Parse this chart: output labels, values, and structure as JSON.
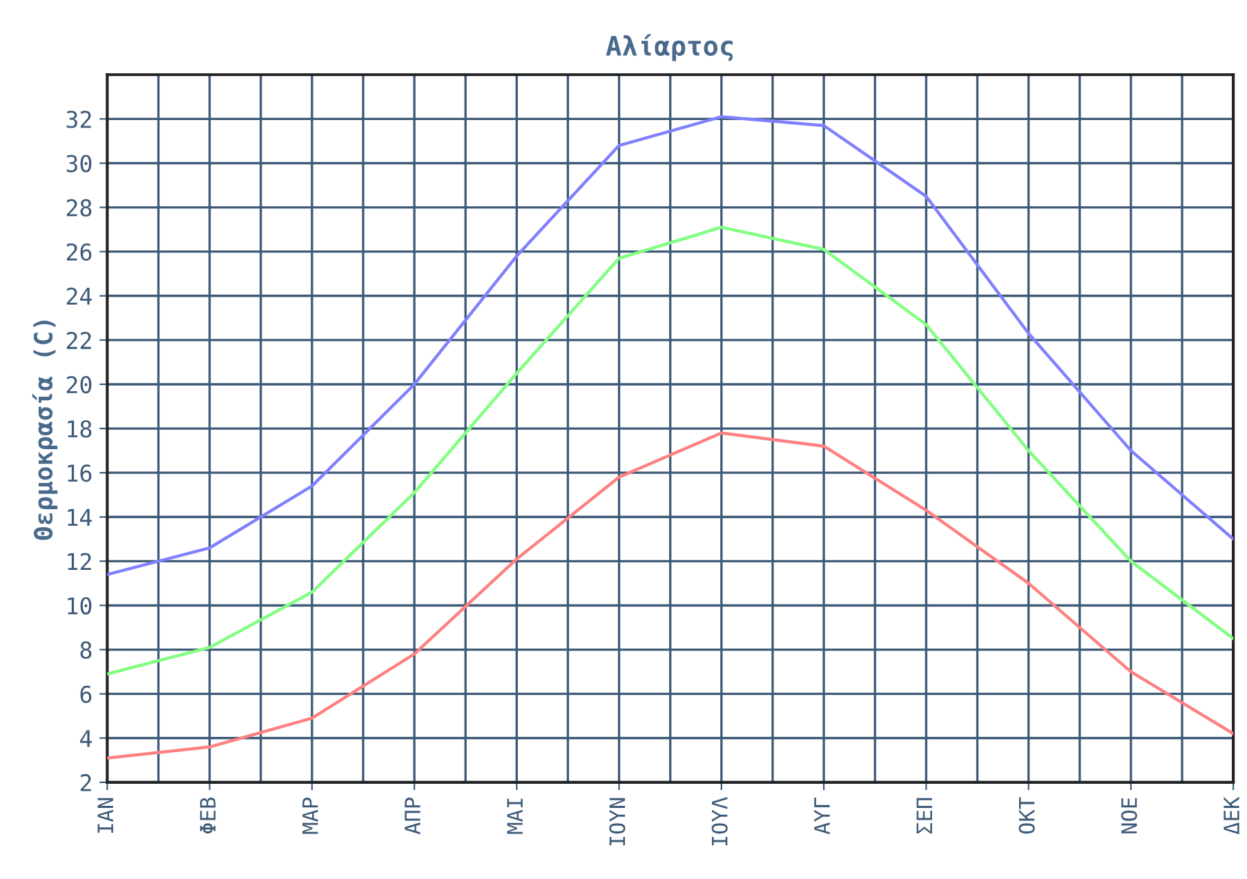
{
  "chart_data": {
    "type": "line",
    "title": "Αλίαρτος",
    "ylabel": "Θερμοκρασία (C)",
    "categories": [
      "ΙΑΝ",
      "ΦΕΒ",
      "ΜΑΡ",
      "ΑΠΡ",
      "ΜΑΙ",
      "ΙΟΥΝ",
      "ΙΟΥΛ",
      "ΑΥΓ",
      "ΣΕΠ",
      "ΟΚΤ",
      "ΝΟΕ",
      "ΔΕΚ"
    ],
    "series": [
      {
        "color": "#8080ff",
        "values": [
          11.4,
          12.6,
          15.4,
          20.0,
          25.8,
          30.8,
          32.1,
          31.7,
          28.5,
          22.3,
          17.0,
          13.0
        ]
      },
      {
        "color": "#80ff80",
        "values": [
          6.9,
          8.1,
          10.6,
          15.1,
          20.5,
          25.7,
          27.1,
          26.1,
          22.7,
          17.0,
          12.0,
          8.5
        ]
      },
      {
        "color": "#ff8080",
        "values": [
          3.1,
          3.6,
          4.9,
          7.8,
          12.1,
          15.8,
          17.8,
          17.2,
          14.3,
          11.0,
          7.0,
          4.2
        ]
      }
    ],
    "ylim": [
      2,
      34
    ],
    "yticks": [
      2,
      4,
      6,
      8,
      10,
      12,
      14,
      16,
      18,
      20,
      22,
      24,
      26,
      28,
      30,
      32
    ],
    "grid": true,
    "marker": "none",
    "line_style": "solid"
  }
}
